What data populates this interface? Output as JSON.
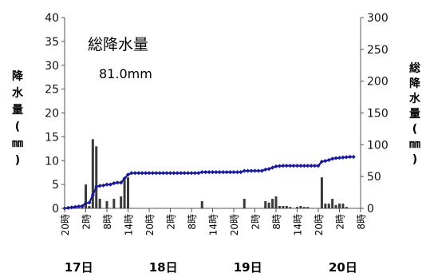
{
  "chart_data": {
    "type": "bar",
    "annotation": {
      "title": "総降水量",
      "value": "81.0mm"
    },
    "y_left": {
      "label": [
        "降",
        "水",
        "量",
        "(",
        "㎜",
        ")"
      ],
      "range": [
        0,
        40
      ],
      "ticks": [
        "0",
        "5",
        "10",
        "15",
        "20",
        "25",
        "30",
        "35",
        "40"
      ]
    },
    "y_right": {
      "label": [
        "総",
        "降",
        "水",
        "量",
        "(",
        "㎜",
        ")"
      ],
      "range": [
        0,
        300
      ],
      "ticks": [
        "0",
        "50",
        "100",
        "150",
        "200",
        "250",
        "300"
      ]
    },
    "x_tick_labels": [
      "20時",
      "2時",
      "8時",
      "14時",
      "20時",
      "2時",
      "8時",
      "14時",
      "20時",
      "2時",
      "8時",
      "14時",
      "20時",
      "2時",
      "8時"
    ],
    "day_labels": [
      "17日",
      "18日",
      "19日",
      "20日"
    ],
    "grid": false,
    "series": [
      {
        "type": "bar",
        "hours": [
          5,
          6,
          7,
          8,
          9,
          10,
          12,
          14,
          16,
          17,
          18,
          39,
          51,
          57,
          58,
          59,
          60,
          61,
          62,
          63,
          64,
          66,
          67,
          68,
          69,
          73,
          74,
          75,
          76,
          77,
          78,
          79,
          80
        ],
        "values": [
          0.3,
          5,
          0.5,
          14.5,
          13,
          2,
          1.5,
          2,
          2.5,
          6,
          6.5,
          1.5,
          2,
          1.5,
          1.2,
          2,
          2.5,
          0.5,
          0.5,
          0.5,
          0.3,
          0.3,
          0.5,
          0.3,
          0.3,
          6.5,
          1,
          1,
          2,
          0.7,
          1,
          1,
          0.3
        ]
      },
      {
        "type": "line",
        "hours": [
          0,
          4,
          5,
          6,
          7,
          8,
          9,
          10,
          11,
          12,
          13,
          14,
          15,
          16,
          17,
          18,
          19,
          20,
          30,
          38,
          39,
          40,
          50,
          51,
          52,
          56,
          57,
          58,
          59,
          60,
          61,
          62,
          64,
          66,
          68,
          70,
          72,
          73,
          74,
          75,
          76,
          77,
          78,
          80,
          81,
          82
        ],
        "values": [
          0,
          3,
          3.5,
          8,
          9,
          21,
          34,
          35.5,
          36,
          37.5,
          37.5,
          39.5,
          40.5,
          40.5,
          47,
          53,
          55.5,
          55.5,
          55.5,
          55.5,
          57,
          57,
          57,
          59,
          59,
          59,
          61,
          62,
          64,
          66,
          66.5,
          67,
          67,
          67,
          67,
          67,
          67,
          73.5,
          74.5,
          76,
          78,
          79,
          79.5,
          80.5,
          81,
          81
        ]
      }
    ]
  }
}
